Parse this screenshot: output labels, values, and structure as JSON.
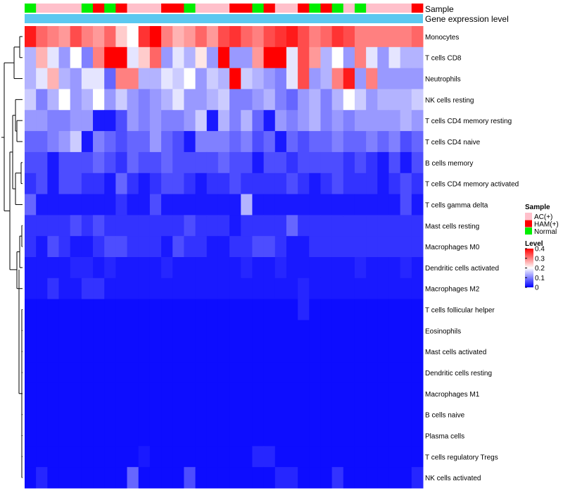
{
  "chart_data": {
    "type": "heatmap",
    "annotations": {
      "sample_track_label": "Sample",
      "expression_track_label": "Gene expression level",
      "columns_sample": [
        "Normal",
        "AC(+)",
        "AC(+)",
        "AC(+)",
        "AC(+)",
        "Normal",
        "HAM(+)",
        "Normal",
        "HAM(+)",
        "AC(+)",
        "AC(+)",
        "AC(+)",
        "HAM(+)",
        "HAM(+)",
        "Normal",
        "AC(+)",
        "AC(+)",
        "AC(+)",
        "HAM(+)",
        "HAM(+)",
        "Normal",
        "HAM(+)",
        "AC(+)",
        "AC(+)",
        "HAM(+)",
        "Normal",
        "HAM(+)",
        "Normal",
        "AC(+)",
        "Normal",
        "AC(+)",
        "AC(+)",
        "AC(+)",
        "AC(+)",
        "HAM(+)"
      ]
    },
    "rows": [
      "Monocytes",
      "T cells CD8",
      "Neutrophils",
      "NK cells resting",
      "T cells CD4 memory resting",
      "T cells CD4 naive",
      "B cells memory",
      "T cells CD4 memory activated",
      "T cells gamma delta",
      "Mast cells resting",
      "Macrophages M0",
      "Dendritic cells activated",
      "Macrophages M2",
      "T cells follicular helper",
      "Eosinophils",
      "Mast cells activated",
      "Dendritic cells resting",
      "Macrophages M1",
      "B cells naive",
      "Plasma cells",
      "T cells regulatory  Tregs",
      "NK cells activated"
    ],
    "values": [
      [
        0.38,
        0.32,
        0.3,
        0.28,
        0.34,
        0.3,
        0.28,
        0.32,
        0.24,
        0.2,
        0.36,
        0.4,
        0.3,
        0.26,
        0.28,
        0.32,
        0.28,
        0.34,
        0.36,
        0.32,
        0.3,
        0.34,
        0.36,
        0.38,
        0.34,
        0.3,
        0.32,
        0.36,
        0.34,
        0.3,
        0.3,
        0.3,
        0.3,
        0.3,
        0.32
      ],
      [
        0.14,
        0.26,
        0.18,
        0.12,
        0.2,
        0.1,
        0.3,
        0.4,
        0.4,
        0.18,
        0.24,
        0.32,
        0.12,
        0.18,
        0.14,
        0.22,
        0.12,
        0.4,
        0.12,
        0.12,
        0.28,
        0.4,
        0.4,
        0.18,
        0.34,
        0.28,
        0.14,
        0.2,
        0.12,
        0.3,
        0.18,
        0.12,
        0.18,
        0.14,
        0.14
      ],
      [
        0.14,
        0.18,
        0.26,
        0.14,
        0.12,
        0.18,
        0.18,
        0.08,
        0.3,
        0.3,
        0.14,
        0.14,
        0.18,
        0.16,
        0.2,
        0.12,
        0.16,
        0.14,
        0.4,
        0.16,
        0.14,
        0.12,
        0.1,
        0.18,
        0.34,
        0.12,
        0.14,
        0.3,
        0.38,
        0.12,
        0.3,
        0.12,
        0.12,
        0.12,
        0.12
      ],
      [
        0.16,
        0.1,
        0.14,
        0.2,
        0.12,
        0.14,
        0.2,
        0.12,
        0.16,
        0.12,
        0.1,
        0.12,
        0.14,
        0.18,
        0.12,
        0.12,
        0.14,
        0.16,
        0.1,
        0.1,
        0.12,
        0.14,
        0.1,
        0.08,
        0.12,
        0.14,
        0.1,
        0.14,
        0.2,
        0.16,
        0.12,
        0.14,
        0.14,
        0.14,
        0.16
      ],
      [
        0.12,
        0.12,
        0.1,
        0.1,
        0.12,
        0.12,
        0.02,
        0.02,
        0.06,
        0.12,
        0.1,
        0.12,
        0.1,
        0.1,
        0.12,
        0.16,
        0.02,
        0.14,
        0.1,
        0.14,
        0.08,
        0.02,
        0.12,
        0.1,
        0.12,
        0.14,
        0.1,
        0.12,
        0.1,
        0.12,
        0.12,
        0.12,
        0.12,
        0.14,
        0.12
      ],
      [
        0.08,
        0.08,
        0.1,
        0.12,
        0.16,
        0.02,
        0.1,
        0.08,
        0.06,
        0.08,
        0.08,
        0.12,
        0.08,
        0.06,
        0.02,
        0.1,
        0.1,
        0.1,
        0.08,
        0.1,
        0.06,
        0.08,
        0.02,
        0.08,
        0.06,
        0.08,
        0.08,
        0.1,
        0.08,
        0.08,
        0.1,
        0.08,
        0.1,
        0.06,
        0.08
      ],
      [
        0.06,
        0.06,
        0.02,
        0.06,
        0.06,
        0.06,
        0.08,
        0.06,
        0.04,
        0.08,
        0.06,
        0.06,
        0.08,
        0.06,
        0.06,
        0.06,
        0.06,
        0.08,
        0.06,
        0.06,
        0.02,
        0.06,
        0.06,
        0.04,
        0.06,
        0.06,
        0.06,
        0.06,
        0.04,
        0.06,
        0.04,
        0.02,
        0.06,
        0.02,
        0.06
      ],
      [
        0.04,
        0.06,
        0.02,
        0.06,
        0.06,
        0.04,
        0.04,
        0.02,
        0.08,
        0.04,
        0.02,
        0.04,
        0.06,
        0.06,
        0.04,
        0.02,
        0.04,
        0.04,
        0.06,
        0.04,
        0.04,
        0.04,
        0.04,
        0.06,
        0.04,
        0.02,
        0.04,
        0.06,
        0.04,
        0.04,
        0.04,
        0.02,
        0.04,
        0.06,
        0.04
      ],
      [
        0.08,
        0.02,
        0.02,
        0.02,
        0.02,
        0.02,
        0.02,
        0.02,
        0.04,
        0.02,
        0.02,
        0.06,
        0.02,
        0.02,
        0.02,
        0.02,
        0.02,
        0.02,
        0.02,
        0.14,
        0.02,
        0.02,
        0.02,
        0.02,
        0.02,
        0.02,
        0.02,
        0.02,
        0.02,
        0.02,
        0.02,
        0.02,
        0.02,
        0.06,
        0.02
      ],
      [
        0.04,
        0.04,
        0.04,
        0.04,
        0.06,
        0.04,
        0.06,
        0.04,
        0.04,
        0.04,
        0.04,
        0.04,
        0.04,
        0.04,
        0.06,
        0.04,
        0.04,
        0.04,
        0.02,
        0.04,
        0.04,
        0.04,
        0.04,
        0.08,
        0.04,
        0.04,
        0.04,
        0.04,
        0.04,
        0.04,
        0.04,
        0.04,
        0.04,
        0.04,
        0.04
      ],
      [
        0.04,
        0.02,
        0.06,
        0.04,
        0.02,
        0.02,
        0.04,
        0.06,
        0.06,
        0.04,
        0.04,
        0.04,
        0.02,
        0.06,
        0.04,
        0.04,
        0.02,
        0.02,
        0.04,
        0.04,
        0.06,
        0.06,
        0.04,
        0.02,
        0.02,
        0.04,
        0.04,
        0.04,
        0.04,
        0.04,
        0.04,
        0.04,
        0.04,
        0.04,
        0.04
      ],
      [
        0.02,
        0.02,
        0.02,
        0.02,
        0.03,
        0.03,
        0.02,
        0.03,
        0.02,
        0.02,
        0.02,
        0.02,
        0.03,
        0.02,
        0.02,
        0.02,
        0.02,
        0.02,
        0.02,
        0.03,
        0.02,
        0.02,
        0.03,
        0.02,
        0.02,
        0.02,
        0.02,
        0.02,
        0.02,
        0.03,
        0.02,
        0.02,
        0.02,
        0.03,
        0.02
      ],
      [
        0.02,
        0.02,
        0.04,
        0.02,
        0.02,
        0.04,
        0.04,
        0.02,
        0.02,
        0.02,
        0.02,
        0.02,
        0.02,
        0.02,
        0.02,
        0.02,
        0.02,
        0.02,
        0.02,
        0.02,
        0.02,
        0.02,
        0.02,
        0.02,
        0.03,
        0.02,
        0.02,
        0.02,
        0.02,
        0.02,
        0.02,
        0.02,
        0.02,
        0.02,
        0.02
      ],
      [
        0.01,
        0.01,
        0.01,
        0.01,
        0.01,
        0.01,
        0.01,
        0.01,
        0.01,
        0.01,
        0.01,
        0.01,
        0.01,
        0.01,
        0.01,
        0.01,
        0.01,
        0.01,
        0.01,
        0.01,
        0.01,
        0.01,
        0.01,
        0.01,
        0.03,
        0.01,
        0.01,
        0.01,
        0.01,
        0.01,
        0.01,
        0.01,
        0.01,
        0.01,
        0.01
      ],
      [
        0.01,
        0.01,
        0.01,
        0.01,
        0.01,
        0.01,
        0.01,
        0.01,
        0.01,
        0.01,
        0.01,
        0.01,
        0.01,
        0.01,
        0.01,
        0.01,
        0.01,
        0.01,
        0.01,
        0.01,
        0.01,
        0.01,
        0.01,
        0.01,
        0.01,
        0.01,
        0.01,
        0.01,
        0.01,
        0.01,
        0.01,
        0.01,
        0.01,
        0.01,
        0.01
      ],
      [
        0.01,
        0.01,
        0.01,
        0.01,
        0.01,
        0.01,
        0.01,
        0.01,
        0.01,
        0.01,
        0.01,
        0.01,
        0.01,
        0.01,
        0.01,
        0.01,
        0.01,
        0.01,
        0.01,
        0.01,
        0.01,
        0.01,
        0.01,
        0.01,
        0.01,
        0.01,
        0.01,
        0.01,
        0.01,
        0.01,
        0.01,
        0.01,
        0.01,
        0.01,
        0.01
      ],
      [
        0.01,
        0.01,
        0.01,
        0.01,
        0.01,
        0.01,
        0.01,
        0.01,
        0.01,
        0.01,
        0.01,
        0.01,
        0.01,
        0.01,
        0.01,
        0.01,
        0.01,
        0.01,
        0.01,
        0.01,
        0.01,
        0.01,
        0.01,
        0.01,
        0.01,
        0.01,
        0.01,
        0.01,
        0.01,
        0.01,
        0.01,
        0.01,
        0.01,
        0.01,
        0.01
      ],
      [
        0.01,
        0.01,
        0.01,
        0.01,
        0.01,
        0.01,
        0.01,
        0.01,
        0.01,
        0.01,
        0.01,
        0.01,
        0.01,
        0.01,
        0.01,
        0.01,
        0.01,
        0.01,
        0.01,
        0.01,
        0.01,
        0.01,
        0.01,
        0.01,
        0.01,
        0.01,
        0.01,
        0.01,
        0.01,
        0.01,
        0.01,
        0.01,
        0.01,
        0.01,
        0.01
      ],
      [
        0.01,
        0.01,
        0.01,
        0.01,
        0.01,
        0.01,
        0.01,
        0.01,
        0.01,
        0.01,
        0.01,
        0.01,
        0.01,
        0.01,
        0.01,
        0.01,
        0.01,
        0.01,
        0.01,
        0.01,
        0.01,
        0.01,
        0.01,
        0.01,
        0.01,
        0.01,
        0.01,
        0.01,
        0.01,
        0.01,
        0.01,
        0.01,
        0.01,
        0.01,
        0.01
      ],
      [
        0.01,
        0.01,
        0.01,
        0.01,
        0.01,
        0.01,
        0.01,
        0.01,
        0.01,
        0.01,
        0.01,
        0.01,
        0.01,
        0.01,
        0.01,
        0.01,
        0.01,
        0.01,
        0.01,
        0.01,
        0.01,
        0.01,
        0.01,
        0.01,
        0.01,
        0.01,
        0.01,
        0.01,
        0.01,
        0.01,
        0.01,
        0.01,
        0.01,
        0.01,
        0.01
      ],
      [
        0.01,
        0.01,
        0.01,
        0.01,
        0.01,
        0.01,
        0.01,
        0.01,
        0.01,
        0.01,
        0.02,
        0.01,
        0.01,
        0.01,
        0.01,
        0.01,
        0.01,
        0.01,
        0.01,
        0.01,
        0.03,
        0.03,
        0.01,
        0.01,
        0.01,
        0.01,
        0.01,
        0.01,
        0.01,
        0.01,
        0.01,
        0.01,
        0.01,
        0.01,
        0.01
      ],
      [
        0.01,
        0.03,
        0.01,
        0.01,
        0.01,
        0.01,
        0.01,
        0.01,
        0.01,
        0.08,
        0.01,
        0.01,
        0.01,
        0.01,
        0.06,
        0.01,
        0.01,
        0.01,
        0.01,
        0.01,
        0.01,
        0.01,
        0.03,
        0.03,
        0.01,
        0.01,
        0.01,
        0.04,
        0.01,
        0.01,
        0.01,
        0.01,
        0.01,
        0.01,
        0.03
      ]
    ],
    "legend": {
      "sample_title": "Sample",
      "sample_entries": [
        {
          "label": "AC(+)",
          "color": "#ffc0cb"
        },
        {
          "label": "HAM(+)",
          "color": "#ff0000"
        },
        {
          "label": "Normal",
          "color": "#00ee00"
        }
      ],
      "level_title": "Level",
      "level_ticks": [
        "0.4",
        "0.3",
        "0.2",
        "0.1",
        "0"
      ],
      "level_tick_values": [
        0.4,
        0.3,
        0.2,
        0.1,
        0
      ],
      "placement": "right"
    },
    "color_scale": {
      "min": 0,
      "mid": 0.2,
      "max": 0.4,
      "low": "#0000ff",
      "midcolor": "#ffffff",
      "high": "#ff0000"
    },
    "expression_track_color": "#5bc8f0",
    "xlabel": "",
    "ylabel": ""
  }
}
